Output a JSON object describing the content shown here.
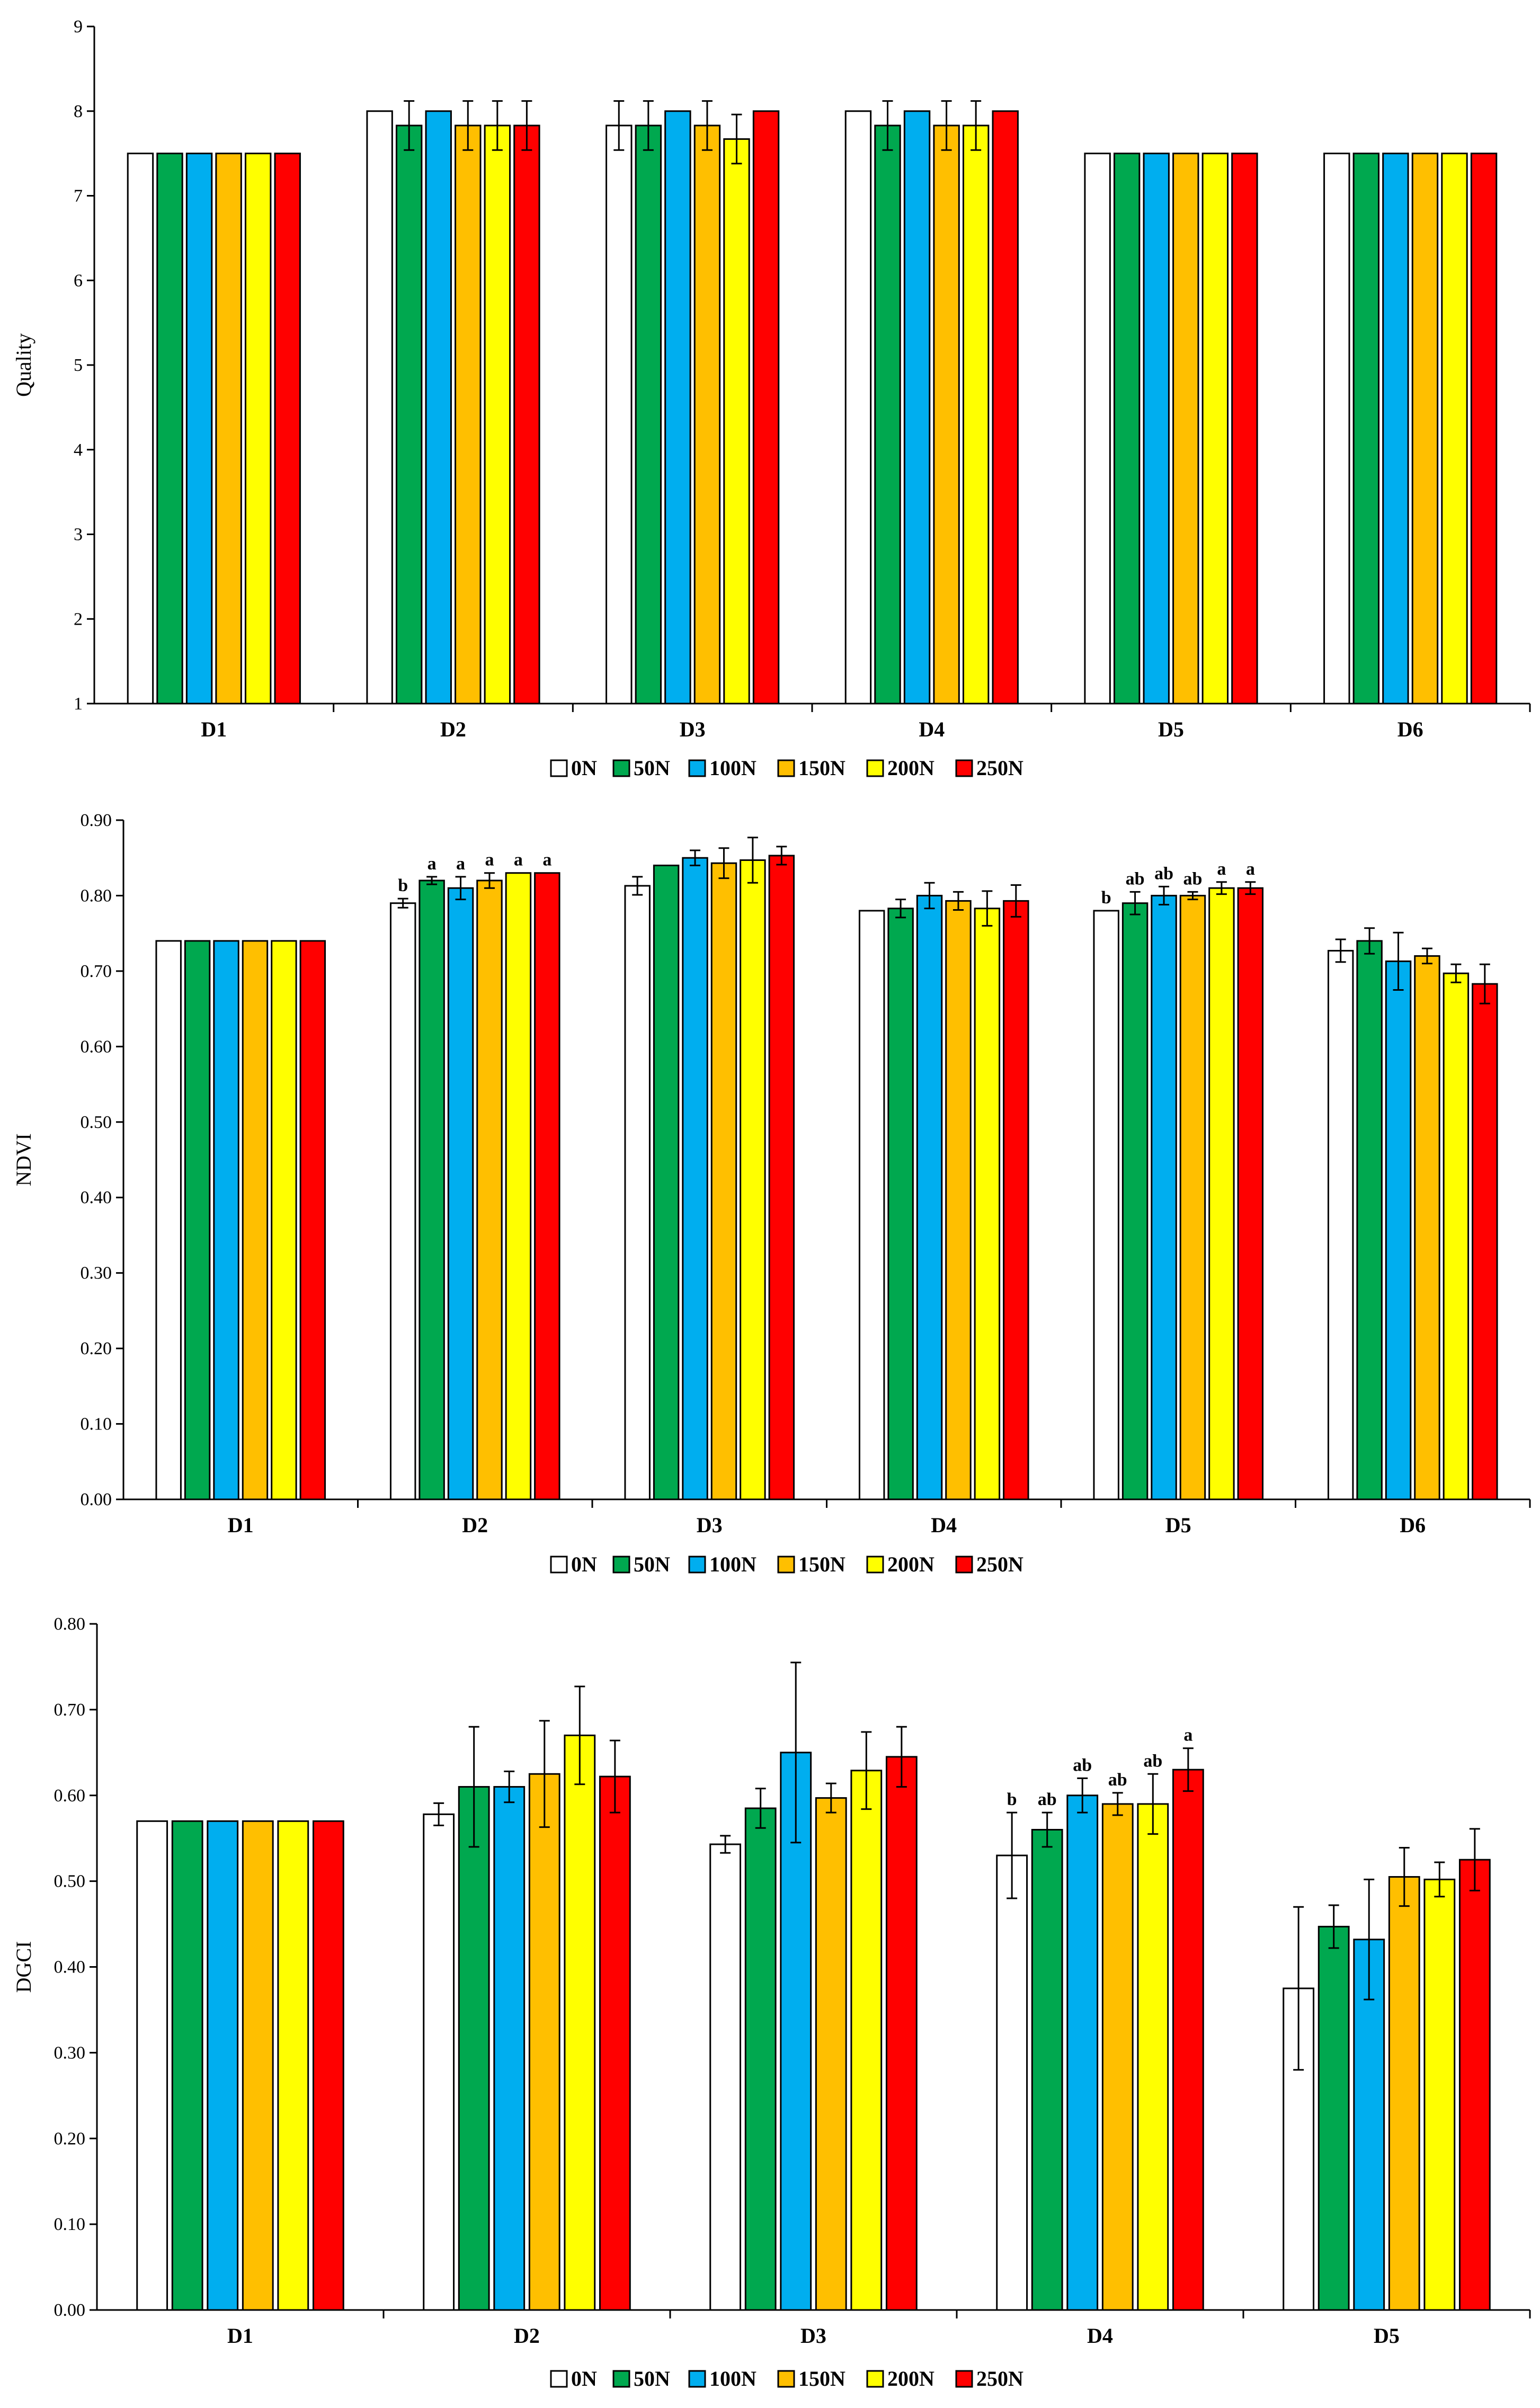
{
  "chart_data": [
    {
      "type": "bar",
      "ylabel": "Quality",
      "xlabel": "",
      "title": "",
      "ylim": [
        1,
        9
      ],
      "yticks": [
        1,
        2,
        3,
        4,
        5,
        6,
        7,
        8,
        9
      ],
      "ytick_labels": [
        "1",
        "2",
        "3",
        "4",
        "5",
        "6",
        "7",
        "8",
        "9"
      ],
      "categories": [
        "D1",
        "D2",
        "D3",
        "D4",
        "D5",
        "D6"
      ],
      "series": [
        {
          "name": "0N",
          "values": [
            7.5,
            8.0,
            7.83,
            8.0,
            7.5,
            7.5
          ],
          "errors": [
            0,
            0,
            0.29,
            0,
            0,
            0
          ]
        },
        {
          "name": "50N",
          "values": [
            7.5,
            7.83,
            7.83,
            7.83,
            7.5,
            7.5
          ],
          "errors": [
            0,
            0.29,
            0.29,
            0.29,
            0,
            0
          ]
        },
        {
          "name": "100N",
          "values": [
            7.5,
            8.0,
            8.0,
            8.0,
            7.5,
            7.5
          ],
          "errors": [
            0,
            0,
            0,
            0,
            0,
            0
          ]
        },
        {
          "name": "150N",
          "values": [
            7.5,
            7.83,
            7.83,
            7.83,
            7.5,
            7.5
          ],
          "errors": [
            0,
            0.29,
            0.29,
            0.29,
            0,
            0
          ]
        },
        {
          "name": "200N",
          "values": [
            7.5,
            7.83,
            7.67,
            7.83,
            7.5,
            7.5
          ],
          "errors": [
            0,
            0.29,
            0.29,
            0.29,
            0,
            0
          ]
        },
        {
          "name": "250N",
          "values": [
            7.5,
            7.83,
            8.0,
            8.0,
            7.5,
            7.5
          ],
          "errors": [
            0,
            0.29,
            0,
            0,
            0,
            0
          ]
        }
      ],
      "grid": false,
      "legend": "bottom"
    },
    {
      "type": "bar",
      "ylabel": "NDVI",
      "xlabel": "",
      "title": "",
      "ylim": [
        0,
        0.9
      ],
      "yticks": [
        0,
        0.1,
        0.2,
        0.3,
        0.4,
        0.5,
        0.6,
        0.7,
        0.8,
        0.9
      ],
      "ytick_labels": [
        "0.00",
        "0.10",
        "0.20",
        "0.30",
        "0.40",
        "0.50",
        "0.60",
        "0.70",
        "0.80",
        "0.90"
      ],
      "categories": [
        "D1",
        "D2",
        "D3",
        "D4",
        "D5",
        "D6"
      ],
      "series": [
        {
          "name": "0N",
          "values": [
            0.74,
            0.79,
            0.813,
            0.78,
            0.78,
            0.727
          ],
          "errors": [
            0,
            0.006,
            0.012,
            0,
            0,
            0.015
          ],
          "letters": [
            "",
            "b",
            "",
            "",
            "b",
            ""
          ]
        },
        {
          "name": "50N",
          "values": [
            0.74,
            0.82,
            0.84,
            0.783,
            0.79,
            0.74
          ],
          "errors": [
            0,
            0.005,
            0,
            0.012,
            0.015,
            0.017
          ],
          "letters": [
            "",
            "a",
            "",
            "",
            "ab",
            ""
          ]
        },
        {
          "name": "100N",
          "values": [
            0.74,
            0.81,
            0.85,
            0.8,
            0.8,
            0.713
          ],
          "errors": [
            0,
            0.015,
            0.01,
            0.017,
            0.012,
            0.038
          ],
          "letters": [
            "",
            "a",
            "",
            "",
            "ab",
            ""
          ]
        },
        {
          "name": "150N",
          "values": [
            0.74,
            0.82,
            0.843,
            0.793,
            0.8,
            0.72
          ],
          "errors": [
            0,
            0.01,
            0.02,
            0.012,
            0.005,
            0.01
          ],
          "letters": [
            "",
            "a",
            "",
            "",
            "ab",
            ""
          ]
        },
        {
          "name": "200N",
          "values": [
            0.74,
            0.83,
            0.847,
            0.783,
            0.81,
            0.697
          ],
          "errors": [
            0,
            0,
            0.03,
            0.023,
            0.008,
            0.012
          ],
          "letters": [
            "",
            "a",
            "",
            "",
            "a",
            ""
          ]
        },
        {
          "name": "250N",
          "values": [
            0.74,
            0.83,
            0.853,
            0.793,
            0.81,
            0.683
          ],
          "errors": [
            0,
            0,
            0.012,
            0.021,
            0.008,
            0.026
          ],
          "letters": [
            "",
            "a",
            "",
            "",
            "a",
            ""
          ]
        }
      ],
      "grid": false,
      "legend": "bottom"
    },
    {
      "type": "bar",
      "ylabel": "DGCI",
      "xlabel": "",
      "title": "",
      "ylim": [
        0,
        0.8
      ],
      "yticks": [
        0,
        0.1,
        0.2,
        0.3,
        0.4,
        0.5,
        0.6,
        0.7,
        0.8
      ],
      "ytick_labels": [
        "0.00",
        "0.10",
        "0.20",
        "0.30",
        "0.40",
        "0.50",
        "0.60",
        "0.70",
        "0.80"
      ],
      "categories": [
        "D1",
        "D2",
        "D3",
        "D4",
        "D5"
      ],
      "series": [
        {
          "name": "0N",
          "values": [
            0.57,
            0.578,
            0.543,
            0.53,
            0.375
          ],
          "errors": [
            0,
            0.013,
            0.01,
            0.05,
            0.095
          ],
          "letters": [
            "",
            "",
            "",
            "b",
            ""
          ]
        },
        {
          "name": "50N",
          "values": [
            0.57,
            0.61,
            0.585,
            0.56,
            0.447
          ],
          "errors": [
            0,
            0.07,
            0.023,
            0.02,
            0.025
          ],
          "letters": [
            "",
            "",
            "",
            "ab",
            ""
          ]
        },
        {
          "name": "100N",
          "values": [
            0.57,
            0.61,
            0.65,
            0.6,
            0.432
          ],
          "errors": [
            0,
            0.018,
            0.105,
            0.02,
            0.07
          ],
          "letters": [
            "",
            "",
            "",
            "ab",
            ""
          ]
        },
        {
          "name": "150N",
          "values": [
            0.57,
            0.625,
            0.597,
            0.59,
            0.505
          ],
          "errors": [
            0,
            0.062,
            0.017,
            0.013,
            0.034
          ],
          "letters": [
            "",
            "",
            "",
            "ab",
            ""
          ]
        },
        {
          "name": "200N",
          "values": [
            0.57,
            0.67,
            0.629,
            0.59,
            0.502
          ],
          "errors": [
            0,
            0.057,
            0.045,
            0.035,
            0.02
          ],
          "letters": [
            "",
            "",
            "",
            "ab",
            ""
          ]
        },
        {
          "name": "250N",
          "values": [
            0.57,
            0.622,
            0.645,
            0.63,
            0.525
          ],
          "errors": [
            0,
            0.042,
            0.035,
            0.025,
            0.036
          ],
          "letters": [
            "",
            "",
            "",
            "a",
            ""
          ]
        }
      ],
      "grid": false,
      "legend": "bottom"
    }
  ],
  "colors": {
    "0N": "#ffffff",
    "50N": "#00a84f",
    "100N": "#00aeef",
    "150N": "#ffbf00",
    "200N": "#ffff00",
    "250N": "#ff0000",
    "axis": "#000000"
  }
}
